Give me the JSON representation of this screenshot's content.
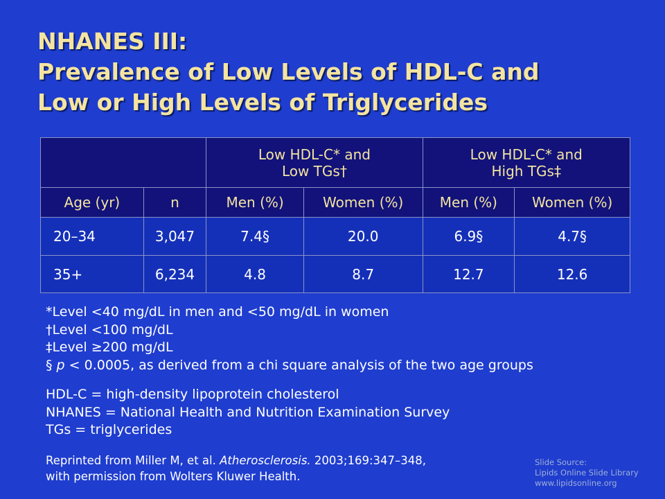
{
  "header": {
    "title_lines": [
      "NHANES III:",
      "Prevalence of Low Levels of HDL-C and",
      "Low or High Levels of Triglycerides"
    ]
  },
  "table": {
    "group_headers": [
      {
        "lines": [
          "Low HDL-C* and",
          "Low TGs†"
        ]
      },
      {
        "lines": [
          "Low HDL-C* and",
          "High TGs‡"
        ]
      }
    ],
    "columns": [
      "Age (yr)",
      "n",
      "Men (%)",
      "Women (%)",
      "Men (%)",
      "Women (%)"
    ],
    "rows": [
      [
        "20–34",
        "3,047",
        "7.4§",
        "20.0",
        "6.9§",
        "4.7§"
      ],
      [
        "35+",
        "6,234",
        "4.8",
        "8.7",
        "12.7",
        "12.6"
      ]
    ]
  },
  "footnotes": [
    {
      "parts": [
        "*Level <40 mg/dL in men and <50 mg/dL in women"
      ]
    },
    {
      "parts": [
        "†Level <100 mg/dL"
      ]
    },
    {
      "parts": [
        "‡Level ≥200 mg/dL"
      ]
    },
    {
      "parts": [
        "§ ",
        "p",
        " < 0.0005, as derived from a chi square analysis of the two age groups"
      ]
    }
  ],
  "definitions": [
    "HDL-C = high-density lipoprotein cholesterol",
    "NHANES = National Health and Nutrition Examination Survey",
    "TGs = triglycerides"
  ],
  "reference": {
    "line1": [
      "Reprinted from Miller M, et al. ",
      "Atherosclerosis.",
      " 2003;169:347–348,"
    ],
    "line2": "with permission from Wolters Kluwer Health."
  },
  "source": [
    "Slide Source:",
    "Lipids Online Slide Library",
    "www.lipidsonline.org"
  ]
}
